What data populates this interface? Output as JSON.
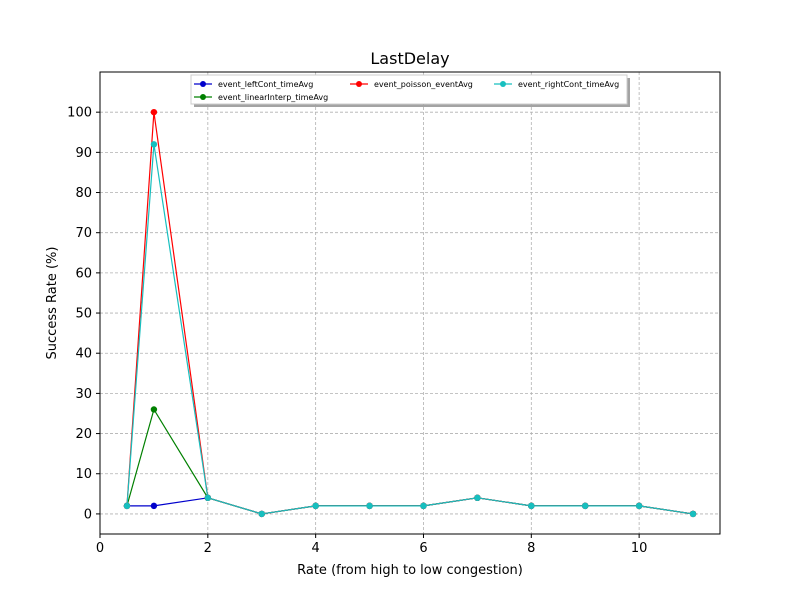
{
  "chart_data": {
    "type": "line",
    "title": "LastDelay",
    "xlabel": "Rate (from high to low congestion)",
    "ylabel": "Success Rate (%)",
    "xlim": [
      0,
      11.5
    ],
    "ylim": [
      -5,
      110
    ],
    "xticks": [
      0,
      2,
      4,
      6,
      8,
      10
    ],
    "yticks": [
      0,
      10,
      20,
      30,
      40,
      50,
      60,
      70,
      80,
      90,
      100
    ],
    "grid": true,
    "legend_position": "top",
    "x": [
      0.5,
      1,
      2,
      3,
      4,
      5,
      6,
      7,
      8,
      9,
      10,
      11
    ],
    "series": [
      {
        "name": "event_leftCont_timeAvg",
        "color": "#0000cc",
        "values": [
          2,
          2,
          4,
          0,
          2,
          2,
          2,
          4,
          2,
          2,
          2,
          0
        ]
      },
      {
        "name": "event_linearInterp_timeAvg",
        "color": "#008000",
        "values": [
          2,
          26,
          4,
          0,
          2,
          2,
          2,
          4,
          2,
          2,
          2,
          0
        ]
      },
      {
        "name": "event_poisson_eventAvg",
        "color": "#ff0000",
        "values": [
          2,
          100,
          4,
          0,
          2,
          2,
          2,
          4,
          2,
          2,
          2,
          0
        ]
      },
      {
        "name": "event_rightCont_timeAvg",
        "color": "#17bfbf",
        "values": [
          2,
          92,
          4,
          0,
          2,
          2,
          2,
          4,
          2,
          2,
          2,
          0
        ]
      }
    ]
  }
}
